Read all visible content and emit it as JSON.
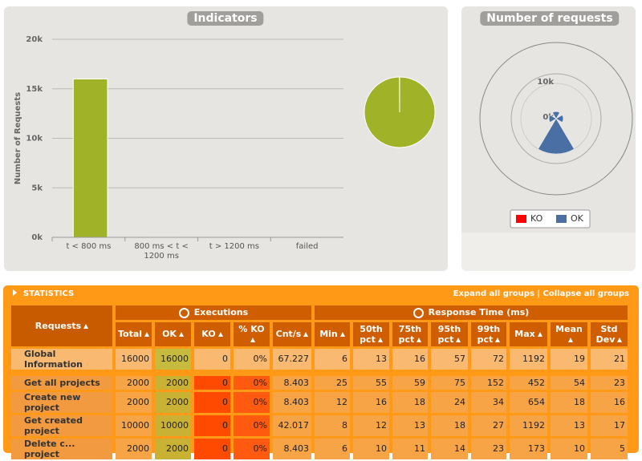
{
  "chart_data": [
    {
      "type": "bar",
      "title": "Indicators",
      "y_label": "Number of Requests",
      "categories": [
        "t < 800 ms",
        "800 ms < t < 1200 ms",
        "t > 1200 ms",
        "failed"
      ],
      "values": [
        15990,
        10,
        0,
        0
      ],
      "colors": [
        "#a0b228",
        "#ffdd00",
        "#ff9916",
        "#ff0000"
      ],
      "ylim": [
        0,
        20000
      ],
      "yticks": [
        {
          "value": 0,
          "label": "0k"
        },
        {
          "value": 5000,
          "label": "5k"
        },
        {
          "value": 10000,
          "label": "10k"
        },
        {
          "value": 15000,
          "label": "15k"
        },
        {
          "value": 20000,
          "label": "20k"
        }
      ],
      "grid": true
    },
    {
      "type": "pie",
      "values": [
        15990,
        10,
        0,
        0
      ],
      "colors": [
        "#a0b228",
        "#ffdd00",
        "#ff9916",
        "#ff0000"
      ]
    },
    {
      "type": "polar",
      "title": "Number of requests",
      "series": [
        {
          "name": "KO",
          "color": "#ff0000",
          "values": [
            0,
            0,
            0,
            0
          ]
        },
        {
          "name": "OK",
          "color": "#4a6fa5",
          "values": [
            2000,
            2000,
            10000,
            2000
          ]
        }
      ],
      "rlim": [
        0,
        20000
      ],
      "rticks": [
        {
          "value": 0,
          "label": "0k"
        },
        {
          "value": 10000,
          "label": "10k"
        }
      ],
      "legend": "bottom"
    }
  ],
  "statistics": {
    "title": "STATISTICS",
    "expand": "Expand all groups",
    "separator": "|",
    "collapse": "Collapse all groups",
    "requests_header": "Requests",
    "groups": [
      "Executions",
      "Response Time (ms)"
    ],
    "columns": [
      "Total",
      "OK",
      "KO",
      "% KO",
      "Cnt/s",
      "Min",
      "50th pct",
      "75th pct",
      "95th pct",
      "99th pct",
      "Max",
      "Mean",
      "Std Dev"
    ],
    "rows": [
      {
        "name": "Global Information",
        "cells": [
          "16000",
          "16000",
          "0",
          "0%",
          "67.227",
          "6",
          "13",
          "16",
          "57",
          "72",
          "1192",
          "19",
          "21"
        ]
      },
      {
        "name": "Get all projects",
        "cells": [
          "2000",
          "2000",
          "0",
          "0%",
          "8.403",
          "25",
          "55",
          "59",
          "75",
          "152",
          "452",
          "54",
          "23"
        ]
      },
      {
        "name": "Create new project",
        "cells": [
          "2000",
          "2000",
          "0",
          "0%",
          "8.403",
          "12",
          "16",
          "18",
          "24",
          "34",
          "654",
          "18",
          "16"
        ]
      },
      {
        "name": "Get created project",
        "cells": [
          "10000",
          "10000",
          "0",
          "0%",
          "42.017",
          "8",
          "12",
          "13",
          "18",
          "27",
          "1192",
          "13",
          "17"
        ]
      },
      {
        "name": "Delete c... project",
        "cells": [
          "2000",
          "2000",
          "0",
          "0%",
          "8.403",
          "6",
          "10",
          "11",
          "14",
          "23",
          "173",
          "10",
          "5"
        ]
      }
    ]
  }
}
